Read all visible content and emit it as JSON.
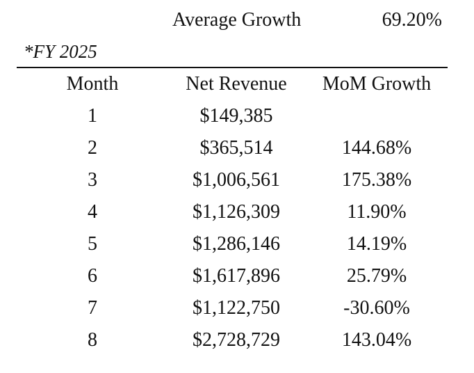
{
  "summary": {
    "label": "Average Growth",
    "value": "69.20%"
  },
  "note": "*FY 2025",
  "table": {
    "headers": {
      "month": "Month",
      "net_revenue": "Net Revenue",
      "mom_growth": "MoM Growth"
    },
    "rows": [
      {
        "month": "1",
        "net_revenue": "$149,385",
        "mom_growth": ""
      },
      {
        "month": "2",
        "net_revenue": "$365,514",
        "mom_growth": "144.68%"
      },
      {
        "month": "3",
        "net_revenue": "$1,006,561",
        "mom_growth": "175.38%"
      },
      {
        "month": "4",
        "net_revenue": "$1,126,309",
        "mom_growth": "11.90%"
      },
      {
        "month": "5",
        "net_revenue": "$1,286,146",
        "mom_growth": "14.19%"
      },
      {
        "month": "6",
        "net_revenue": "$1,617,896",
        "mom_growth": "25.79%"
      },
      {
        "month": "7",
        "net_revenue": "$1,122,750",
        "mom_growth": "-30.60%"
      },
      {
        "month": "8",
        "net_revenue": "$2,728,729",
        "mom_growth": "143.04%"
      }
    ]
  }
}
